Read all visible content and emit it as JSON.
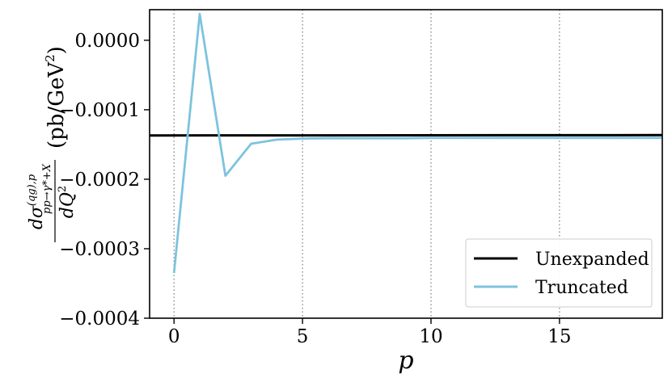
{
  "chart_data": {
    "type": "line",
    "xlabel": "p",
    "ylabel": {
      "numerator_main": "dσ",
      "numerator_sup": "(qg),p",
      "numerator_sub": "pp→γ*+X",
      "denominator_main": "dQ",
      "denominator_sup": "2",
      "unit_main": "(pb/GeV",
      "unit_sup": "2",
      "unit_close": ")"
    },
    "xlim": [
      -0.95,
      19
    ],
    "ylim": [
      -0.0004,
      4.4e-05
    ],
    "x_ticks": [
      0,
      5,
      10,
      15
    ],
    "x_tick_labels": [
      "0",
      "5",
      "10",
      "15"
    ],
    "y_ticks": [
      -0.0004,
      -0.0003,
      -0.0002,
      -0.0001,
      0.0
    ],
    "y_tick_labels": [
      "−0.0004",
      "−0.0003",
      "−0.0002",
      "−0.0001",
      "0.0000"
    ],
    "grid": "vertical dotted at x ticks",
    "legend_position": "lower-right",
    "series": [
      {
        "name": "Unexpanded",
        "color": "#000000",
        "x": [
          -0.95,
          19
        ],
        "y": [
          -0.000137,
          -0.0001365
        ]
      },
      {
        "name": "Truncated",
        "color": "#7ec3de",
        "x": [
          0,
          1,
          2,
          3,
          4,
          5,
          6,
          7,
          8,
          9,
          10,
          11,
          12,
          13,
          14,
          15,
          16,
          17,
          18,
          19
        ],
        "y": [
          -0.000335,
          3.8e-05,
          -0.000195,
          -0.000149,
          -0.000143,
          -0.0001415,
          -0.000141,
          -0.000141,
          -0.000141,
          -0.000141,
          -0.0001405,
          -0.0001405,
          -0.0001405,
          -0.0001405,
          -0.0001405,
          -0.0001405,
          -0.0001405,
          -0.0001405,
          -0.0001405,
          -0.0001405
        ]
      }
    ]
  }
}
